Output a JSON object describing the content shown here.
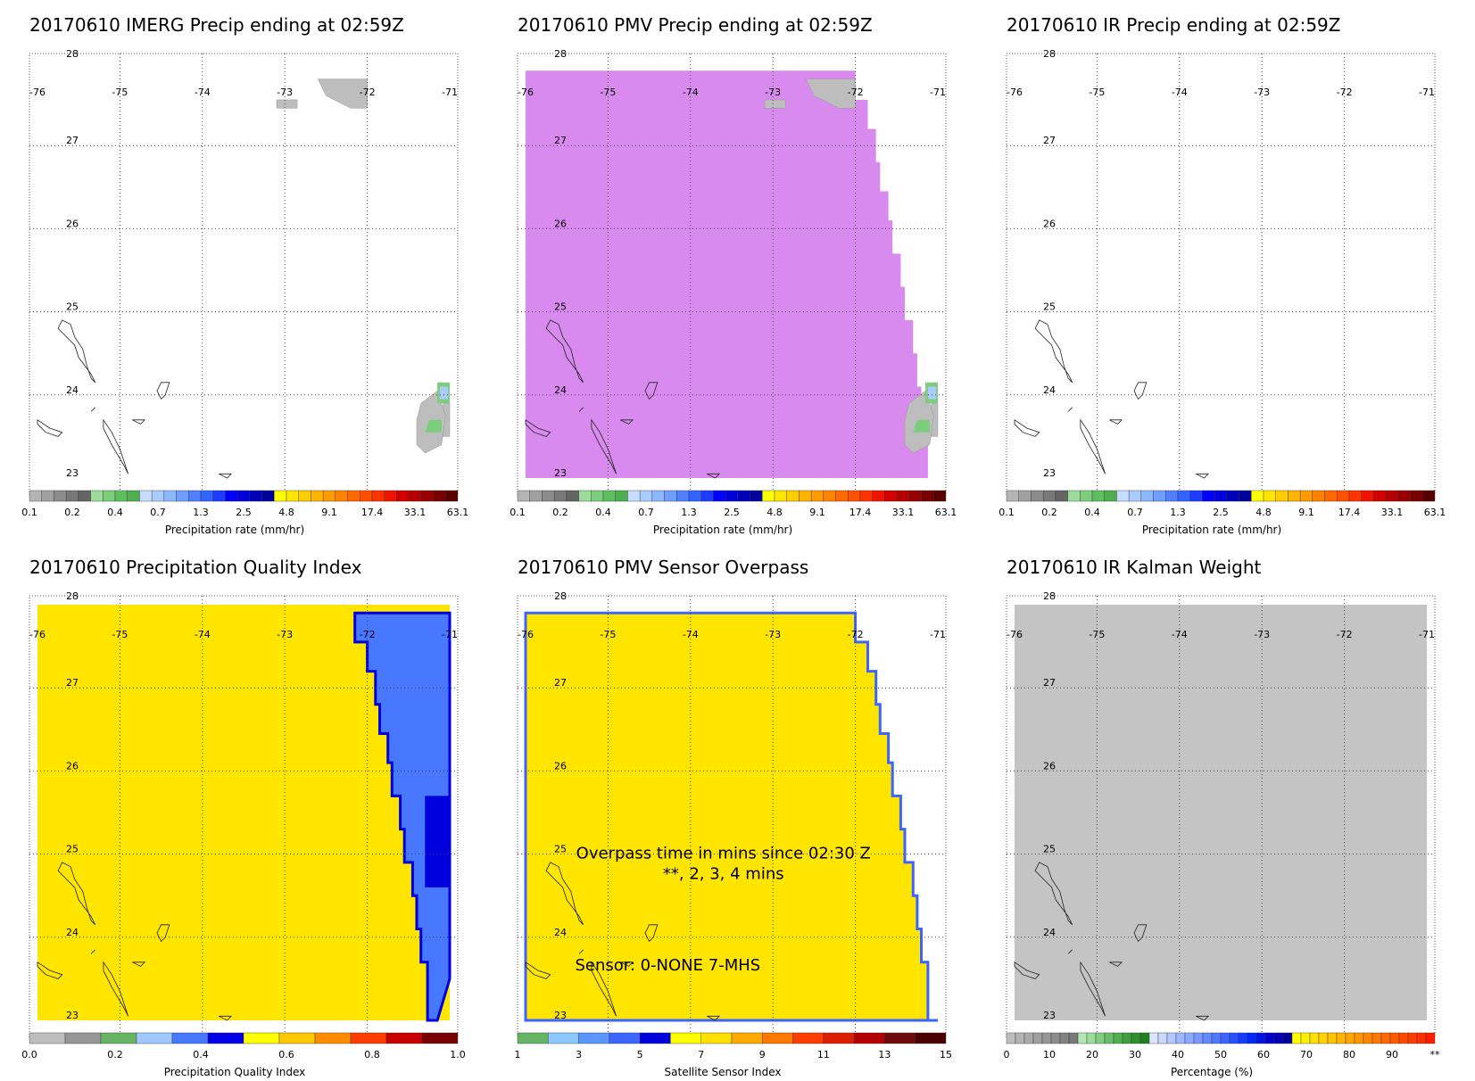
{
  "panels": [
    {
      "id": "imerg",
      "title": "20170610 IMERG Precip ending at 02:59Z",
      "fill": "precip",
      "colorbar": "precip",
      "precip": [
        {
          "lon": [
            -72.6,
            -72.0,
            -72.0,
            -72.2,
            -72.5,
            -72.6
          ],
          "lat": [
            27.8,
            27.8,
            27.45,
            27.45,
            27.6,
            27.8
          ]
        },
        {
          "lon": [
            -73.1,
            -72.85,
            -72.85,
            -73.1
          ],
          "lat": [
            27.55,
            27.55,
            27.45,
            27.45
          ]
        },
        {
          "lon": [
            -71.08,
            -71.0,
            -71.0,
            -71.08
          ],
          "lat": [
            23.5,
            23.5,
            23.9,
            23.9
          ]
        }
      ]
    },
    {
      "id": "pmv",
      "title": "20170610 PMV Precip ending at 02:59Z",
      "fill": "pmv",
      "colorbar": "precip",
      "precip": [
        {
          "lon": [
            -72.6,
            -72.0,
            -72.0,
            -72.2,
            -72.5,
            -72.6
          ],
          "lat": [
            27.8,
            27.8,
            27.45,
            27.45,
            27.6,
            27.8
          ]
        },
        {
          "lon": [
            -73.1,
            -72.85,
            -72.85,
            -73.1
          ],
          "lat": [
            27.55,
            27.55,
            27.45,
            27.45
          ]
        },
        {
          "lon": [
            -71.08,
            -71.0,
            -71.0,
            -71.08
          ],
          "lat": [
            23.5,
            23.5,
            23.9,
            23.9
          ]
        }
      ]
    },
    {
      "id": "ir",
      "title": "20170610 IR Precip ending at 02:59Z",
      "fill": "none",
      "colorbar": "precip",
      "precip": []
    },
    {
      "id": "pqi",
      "title": "20170610 Precipitation Quality Index",
      "fill": "pqi",
      "colorbar": "pqi",
      "precip": []
    },
    {
      "id": "overpass",
      "title": "20170610 PMV Sensor Overpass",
      "fill": "overpass",
      "colorbar": "sensor",
      "precip": [],
      "annotations": {
        "line1": "Overpass time in mins since 02:30 Z",
        "line2": "**, 2, 3, 4 mins",
        "line3": "Sensor:   0-NONE  7-MHS"
      }
    },
    {
      "id": "kalman",
      "title": "20170610 IR Kalman Weight",
      "fill": "kalman",
      "colorbar": "percent",
      "precip": []
    }
  ],
  "map": {
    "lon_ticks": [
      "-76",
      "-75",
      "-74",
      "-73",
      "-72",
      "-71"
    ],
    "lat_ticks": [
      "28",
      "27",
      "26",
      "25",
      "24",
      "23"
    ],
    "lon_range": [
      -76,
      -71
    ],
    "lat_range": [
      23,
      28
    ]
  },
  "colorbars": {
    "precip": {
      "label": "Precipitation rate (mm/hr)",
      "ticks": [
        "0.1",
        "0.2",
        "0.4",
        "0.7",
        "1.3",
        "2.5",
        "4.8",
        "9.1",
        "17.4",
        "33.1",
        "63.1"
      ],
      "colors": [
        "#b4b4b4",
        "#a0a0a0",
        "#8c8c8c",
        "#787878",
        "#646464",
        "#9bdc9b",
        "#7ccd7c",
        "#5fbf5f",
        "#4fae4f",
        "#c8dcff",
        "#aaccff",
        "#8cb8ff",
        "#6e9eff",
        "#5080ff",
        "#3264ff",
        "#1e3cff",
        "#0000ff",
        "#0000dd",
        "#0000bb",
        "#00009b",
        "#ffff00",
        "#ffe600",
        "#ffcd00",
        "#ffb400",
        "#ff9b00",
        "#ff8200",
        "#ff6900",
        "#ff5000",
        "#ff3200",
        "#f01400",
        "#d20000",
        "#b40000",
        "#960000",
        "#780000",
        "#5a0000"
      ]
    },
    "pqi": {
      "label": "Precipitation Quality Index",
      "ticks": [
        "0.0",
        "0.2",
        "0.4",
        "0.6",
        "0.8",
        "1.0"
      ],
      "colors": [
        "#bebebe",
        "#969696",
        "#64b464",
        "#a0c8ff",
        "#4678ff",
        "#0000e6",
        "#ffff00",
        "#ffc800",
        "#ff8c00",
        "#ff3c00",
        "#c80000",
        "#780000"
      ]
    },
    "sensor": {
      "label": "Satellite Sensor Index",
      "ticks": [
        "1",
        "3",
        "5",
        "7",
        "9",
        "11",
        "13",
        "15"
      ],
      "colors": [
        "#64b464",
        "#8cc8ff",
        "#5a96ff",
        "#3c64ff",
        "#0000dc",
        "#ffff00",
        "#ffe000",
        "#ffaa00",
        "#ff7800",
        "#ff3c00",
        "#dc1e00",
        "#b40000",
        "#6e0a0a",
        "#4a0000"
      ]
    },
    "percent": {
      "label": "Percentage (%)",
      "ticks": [
        "0",
        "10",
        "20",
        "30",
        "40",
        "50",
        "60",
        "70",
        "80",
        "90",
        "**"
      ],
      "colors": [
        "#bebebe",
        "#b4b4b4",
        "#aaaaaa",
        "#a0a0a0",
        "#969696",
        "#8c8c8c",
        "#828282",
        "#787878",
        "#b4e6b4",
        "#9bdc9b",
        "#82cd82",
        "#69be69",
        "#50af50",
        "#3ca03c",
        "#2d912d",
        "#208020",
        "#dce6ff",
        "#c8d8ff",
        "#b4c8ff",
        "#a0b8ff",
        "#8ca8ff",
        "#7898ff",
        "#6488ff",
        "#5078ff",
        "#3c64ff",
        "#2850ff",
        "#143cff",
        "#0028ff",
        "#0014e6",
        "#0000cc",
        "#0000b4",
        "#00009b",
        "#ffff00",
        "#fff000",
        "#ffe100",
        "#ffd200",
        "#ffc300",
        "#ffb400",
        "#ffa500",
        "#ff9600",
        "#ff8700",
        "#ff7800",
        "#ff6900",
        "#ff5a00",
        "#ff4b00",
        "#ff3c00",
        "#ff2d00",
        "#ff1e00"
      ]
    }
  },
  "colors": {
    "pmv_fill": "#d98aef",
    "yellow_fill": "#ffe500",
    "pqi_blue": "#4878ff",
    "pqi_darkblue": "#0000dd",
    "kalman_gray": "#c4c4c4",
    "precip_gray": "#bdbdbd",
    "precip_green": "#7ccd7c",
    "precip_lightblue": "#aaccff"
  }
}
